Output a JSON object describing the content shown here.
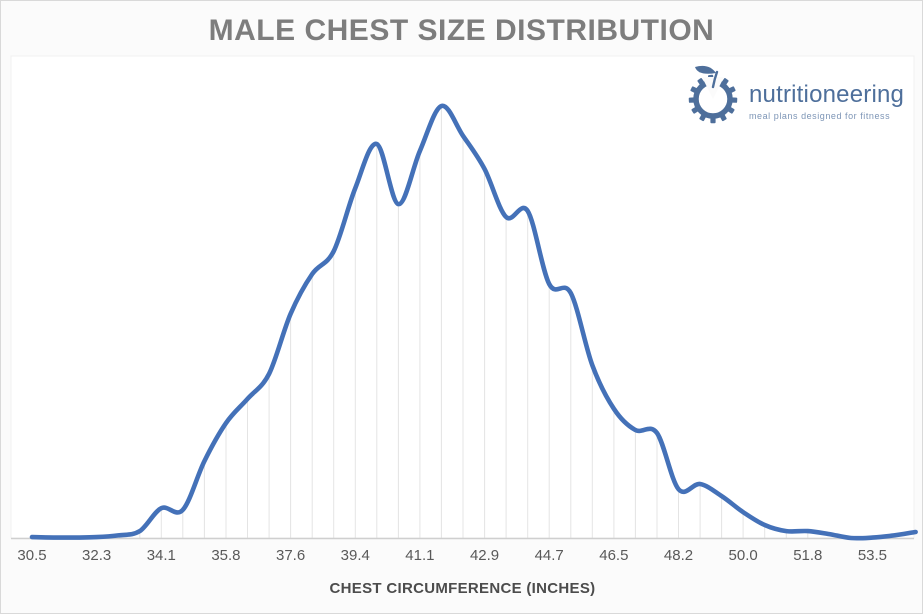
{
  "page": {
    "title": "MALE CHEST SIZE DISTRIBUTION"
  },
  "logo": {
    "name": "nutritioneering",
    "tagline": "meal plans designed for fitness",
    "icon": "gear-apple-icon",
    "color": "#4e6f9b",
    "tagline_color": "#7d95b6"
  },
  "chart_data": {
    "type": "line",
    "smooth": true,
    "markers": false,
    "title": "MALE CHEST SIZE DISTRIBUTION",
    "xlabel": "CHEST CIRCUMFERENCE (INCHES)",
    "ylabel": "",
    "value_axis_visible": false,
    "legend_position": "none",
    "grid": "vertical drop lines from each data point to the category axis",
    "categories": [
      "30.5",
      "32.3",
      "34.1",
      "35.8",
      "37.6",
      "39.4",
      "41.1",
      "42.9",
      "44.7",
      "46.5",
      "48.2",
      "50.0",
      "51.8",
      "53.5"
    ],
    "category_label_interval": 3,
    "x_start": 30.5,
    "x_step_inches": 0.59,
    "num_points": 42,
    "values": [
      0.2,
      0.1,
      0.1,
      0.2,
      0.6,
      1.6,
      6.9,
      6.5,
      17.8,
      26.6,
      32.2,
      38.0,
      51.9,
      61.1,
      66.4,
      81.0,
      91.2,
      77.3,
      89.6,
      100.0,
      93.1,
      85.4,
      74.3,
      75.7,
      58.8,
      56.7,
      40.0,
      29.9,
      25.0,
      24.3,
      11.3,
      12.5,
      9.7,
      6.0,
      3.0,
      1.6,
      1.6,
      0.9,
      0.0,
      0.1,
      0.6,
      1.4
    ],
    "ylim": [
      0,
      100
    ],
    "value_unit": "relative frequency (peak = 100; value axis not shown in chart)",
    "line_color": "#4471b8",
    "dropline_color": "#e4e4e4",
    "axis_line_color": "#cfcfcf",
    "plot_bg_color": "#ffffff"
  }
}
